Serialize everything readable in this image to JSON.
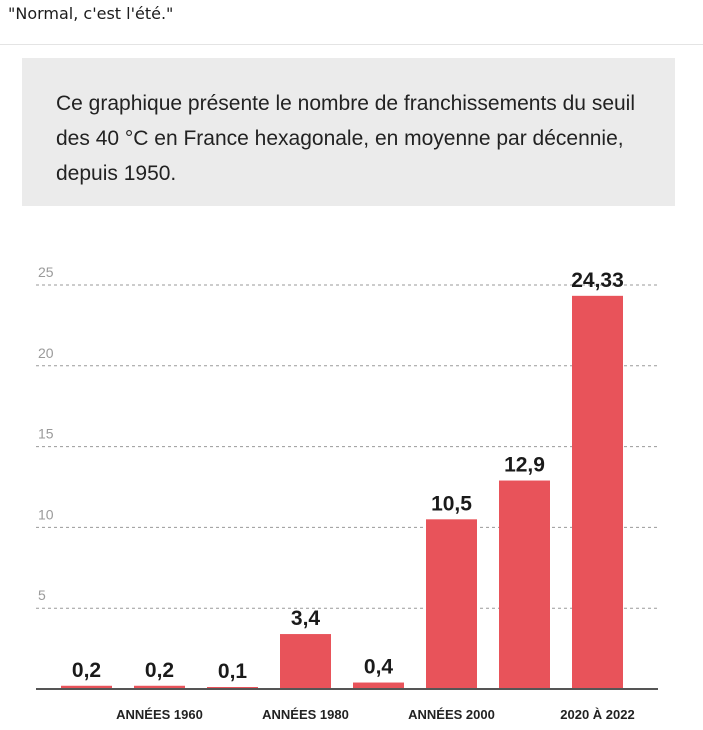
{
  "post": {
    "caption": "\"Normal, c'est l'été.\""
  },
  "intro": {
    "text": "Ce graphique présente le nombre de franchissements du seuil des 40 °C en France hexagonale, en moyenne par décennie, depuis 1950."
  },
  "chart_data": {
    "type": "bar",
    "title": "",
    "xlabel": "",
    "ylabel": "",
    "categories": [
      "",
      "ANNÉES 1960",
      "",
      "ANNÉES 1980",
      "",
      "ANNÉES 2000",
      "",
      "2020 À 2022"
    ],
    "values": [
      0.2,
      0.2,
      0.1,
      3.4,
      0.4,
      10.5,
      12.9,
      24.33
    ],
    "value_labels": [
      "0,2",
      "0,2",
      "0,1",
      "3,4",
      "0,4",
      "10,5",
      "12,9",
      "24,33"
    ],
    "ylim": [
      0,
      25
    ],
    "yticks": [
      5,
      10,
      15,
      20,
      25
    ],
    "grid": true,
    "bar_color": "#e8535a",
    "axis_color": "#555555"
  }
}
